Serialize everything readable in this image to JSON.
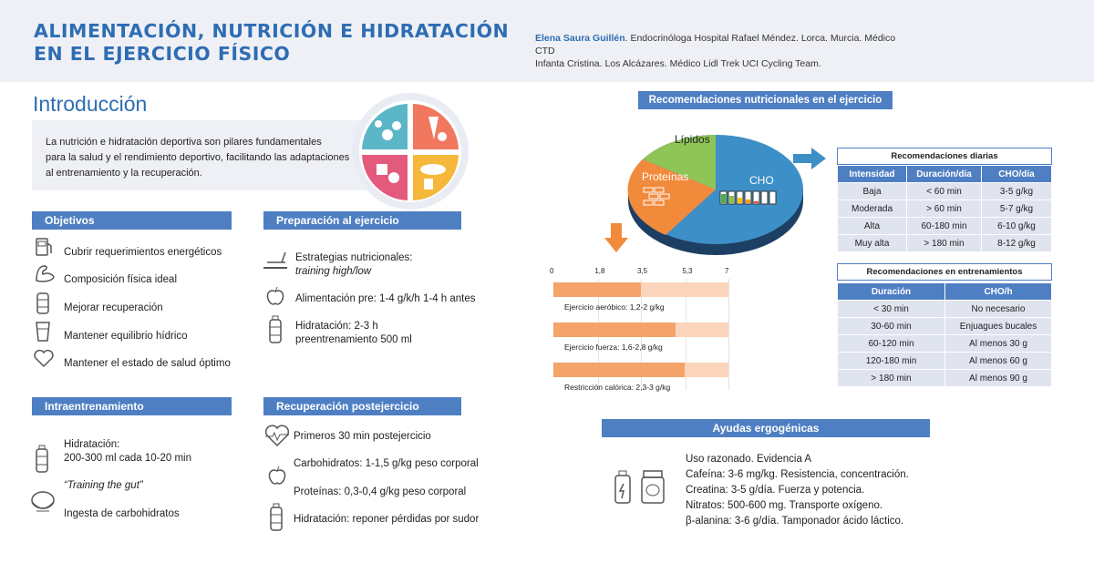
{
  "header": {
    "title_line1": "ALIMENTACIÓN, NUTRICIÓN E HIDRATACIÓN",
    "title_line2": "EN EL EJERCICIO FÍSICO",
    "author_name": "Elena Saura Guillén",
    "author_rest_1": ". Endocrinóloga Hospital Rafael Méndez. Lorca. Murcia. Médico CTD",
    "author_rest_2": "Infanta Cristina. Los Alcázares. Médico Lidl Trek UCI Cycling Team."
  },
  "intro": {
    "heading": "Introducción",
    "line1": "La nutrición e hidratación deportiva son pilares fundamentales",
    "line2": "para la salud y el rendimiento deportivo, facilitando las adaptaciones",
    "line3": "al entrenamiento y la recuperación."
  },
  "objetivos": {
    "heading": "Objetivos",
    "items": [
      "Cubrir requerimientos energéticos",
      "Composición física ideal",
      "Mejorar recuperación",
      "Mantener equilibrio hídrico",
      "Mantener el estado de salud óptimo"
    ]
  },
  "preparacion": {
    "heading": "Preparación al ejercicio",
    "item1_a": "Estrategias nutricionales:",
    "item1_b": "training high/low",
    "item2": "Alimentación pre: 1-4 g/k/h 1-4 h antes",
    "item3_a": "Hidratación: 2-3 h",
    "item3_b": "preentrenamiento 500 ml"
  },
  "intra": {
    "heading": "Intraentrenamiento",
    "item1_a": "Hidratación:",
    "item1_b": "200-300 ml cada 10-20 min",
    "item2": "“Training the gut”",
    "item3": "Ingesta de carbohidratos"
  },
  "recuperacion": {
    "heading": "Recuperación postejercicio",
    "items": [
      "Primeros 30 min postejercicio",
      "Carbohidratos: 1-1,5 g/kg peso corporal",
      "Proteínas: 0,3-0,4 g/kg peso corporal",
      "Hidratación: reponer pérdidas por sudor"
    ]
  },
  "recomendaciones": {
    "heading": "Recomendaciones nutricionales en el ejercicio",
    "pie_labels": {
      "lipidos": "Lípidos",
      "proteinas": "Proteínas",
      "cho": "CHO"
    }
  },
  "diarias": {
    "caption": "Recomendaciones diarias",
    "headers": [
      "Intensidad",
      "Duración/día",
      "CHO/día"
    ],
    "rows": [
      [
        "Baja",
        "< 60 min",
        "3-5 g/kg"
      ],
      [
        "Moderada",
        ">  60 min",
        "5-7 g/kg"
      ],
      [
        "Alta",
        "60-180 min",
        "6-10 g/kg"
      ],
      [
        "Muy alta",
        ">  180 min",
        "8-12 g/kg"
      ]
    ]
  },
  "entrenamientos": {
    "caption": "Recomendaciones en entrenamientos",
    "headers": [
      "Duración",
      "CHO/h"
    ],
    "rows": [
      [
        "< 30 min",
        "No necesario"
      ],
      [
        "30-60 min",
        "Enjuagues bucales"
      ],
      [
        "60-120 min",
        "Al menos 30 g"
      ],
      [
        "120-180 min",
        "Al menos 60 g"
      ],
      [
        ">  180 min",
        "Al menos 90 g"
      ]
    ]
  },
  "chart_data": {
    "type": "bar",
    "ticks": [
      "0",
      "1,8",
      "3,5",
      "5,3",
      "7"
    ],
    "xlim": [
      0,
      7
    ],
    "series": [
      {
        "label": "Ejercicio aeróbico: 1,2-2 g/kg",
        "low": 1.2,
        "high": 2
      },
      {
        "label": "Ejercicio fuerza: 1,6-2,8 g/kg",
        "low": 1.6,
        "high": 2.8
      },
      {
        "label": "Restricción calórica: 2,3-3 g/kg",
        "low": 2.3,
        "high": 3
      }
    ],
    "colors": {
      "dark": "#f4a36b",
      "light": "#fbd5bb",
      "orange": "#f28a3c"
    }
  },
  "ergo": {
    "heading": "Ayudas ergogénicas",
    "lines": [
      "Uso razonado. Evidencia A",
      "Cafeína: 3-6 mg/kg. Resistencia, concentración.",
      "Creatina: 3-5 g/día. Fuerza y potencia.",
      "Nitratos: 500-600 mg. Transporte oxígeno.",
      "β-alanina: 3-6 g/día. Tamponador ácido láctico."
    ]
  },
  "colors": {
    "accent": "#2e6db4",
    "header_bar": "#4f7fc3",
    "table_cell": "#dfe4ef"
  }
}
